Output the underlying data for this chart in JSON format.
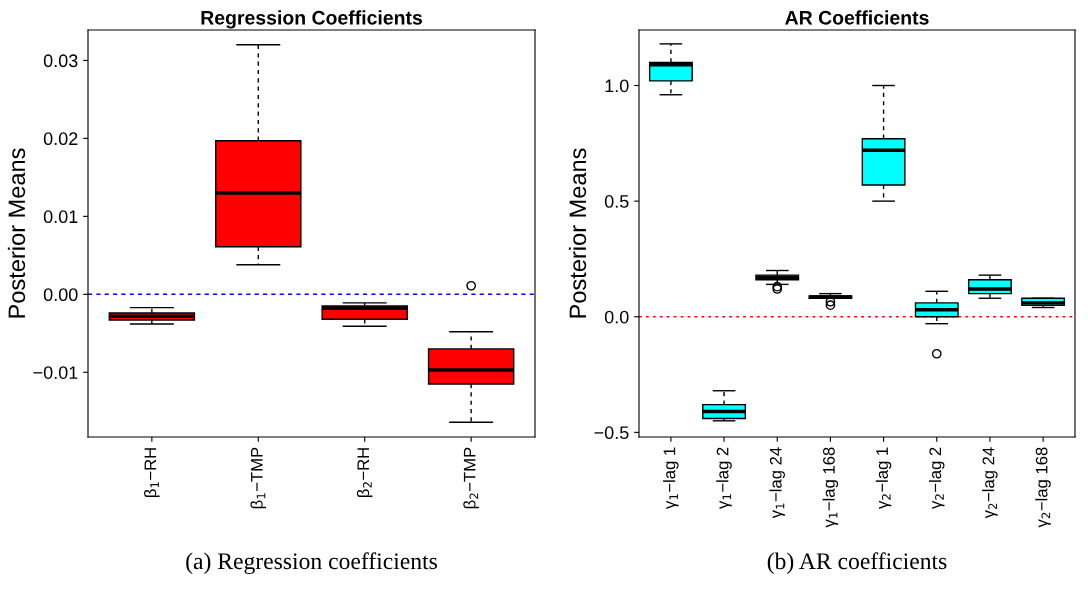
{
  "chart_data": [
    {
      "type": "box",
      "title": "Regression Coefficients",
      "ylabel": "Posterior Means",
      "categories": [
        "β$_{1}$−RH",
        "β$_{1}$−TMP",
        "β$_{2}$−RH",
        "β$_{2}$−TMP"
      ],
      "series": [
        {
          "color": "#ff0000",
          "boxes": [
            {
              "low": -0.0038,
              "q1": -0.0033,
              "median": -0.0028,
              "q3": -0.0024,
              "high": -0.0017
            },
            {
              "low": 0.0038,
              "q1": 0.0061,
              "median": 0.013,
              "q3": 0.0197,
              "high": 0.032
            },
            {
              "low": -0.0041,
              "q1": -0.0032,
              "median": -0.0018,
              "q3": -0.0015,
              "high": -0.0011
            },
            {
              "low": -0.0164,
              "q1": -0.0115,
              "median": -0.0097,
              "q3": -0.007,
              "high": -0.0048,
              "outliers": [
                0.0011
              ]
            }
          ]
        }
      ],
      "ylim": [
        -0.0183,
        0.0339
      ],
      "yticks": [
        {
          "value": -0.01,
          "label": "−0.01"
        },
        {
          "value": 0,
          "label": "0.00"
        },
        {
          "value": 0.01,
          "label": "0.01"
        },
        {
          "value": 0.02,
          "label": "0.02"
        },
        {
          "value": 0.03,
          "label": "0.03"
        }
      ],
      "ref_lines": [
        {
          "axis": "y",
          "value": 0,
          "color": "#0000ff",
          "line_style": "dashed"
        }
      ],
      "annotations": [
        "(a) Regression coefficients"
      ],
      "grid": false,
      "legend": false
    },
    {
      "type": "box",
      "title": "AR Coefficients",
      "ylabel": "Posterior Means",
      "categories": [
        "γ$_{1}$−lag 1",
        "γ$_{1}$−lag 2",
        "γ$_{1}$−lag 24",
        "γ$_{1}$−lag 168",
        "γ$_{2}$−lag 1",
        "γ$_{2}$−lag 2",
        "γ$_{2}$−lag 24",
        "γ$_{2}$−lag 168"
      ],
      "series": [
        {
          "color": "#00ffff",
          "boxes": [
            {
              "low": 0.96,
              "q1": 1.02,
              "median": 1.09,
              "q3": 1.1,
              "high": 1.18
            },
            {
              "low": -0.45,
              "q1": -0.44,
              "median": -0.41,
              "q3": -0.38,
              "high": -0.32
            },
            {
              "low": 0.14,
              "q1": 0.16,
              "median": 0.17,
              "q3": 0.18,
              "high": 0.2,
              "outliers": [
                0.13,
                0.12
              ]
            },
            {
              "low": 0.08,
              "q1": 0.08,
              "median": 0.085,
              "q3": 0.09,
              "high": 0.1,
              "outliers": [
                0.065,
                0.05
              ]
            },
            {
              "low": 0.5,
              "q1": 0.57,
              "median": 0.72,
              "q3": 0.77,
              "high": 1.0
            },
            {
              "low": -0.03,
              "q1": 0.0,
              "median": 0.03,
              "q3": 0.06,
              "high": 0.11,
              "outliers": [
                -0.16
              ]
            },
            {
              "low": 0.08,
              "q1": 0.1,
              "median": 0.12,
              "q3": 0.16,
              "high": 0.18
            },
            {
              "low": 0.04,
              "q1": 0.05,
              "median": 0.06,
              "q3": 0.08,
              "high": 0.08
            }
          ]
        }
      ],
      "ylim": [
        -0.52,
        1.24
      ],
      "yticks": [
        {
          "value": -0.5,
          "label": "−0.5"
        },
        {
          "value": 0,
          "label": "0.0"
        },
        {
          "value": 0.5,
          "label": "0.5"
        },
        {
          "value": 1.0,
          "label": "1.0"
        }
      ],
      "ref_lines": [
        {
          "axis": "y",
          "value": 0,
          "color": "#ff0000",
          "line_style": "dotted"
        }
      ],
      "annotations": [
        "(b) AR coefficients"
      ],
      "grid": false,
      "legend": false
    }
  ]
}
